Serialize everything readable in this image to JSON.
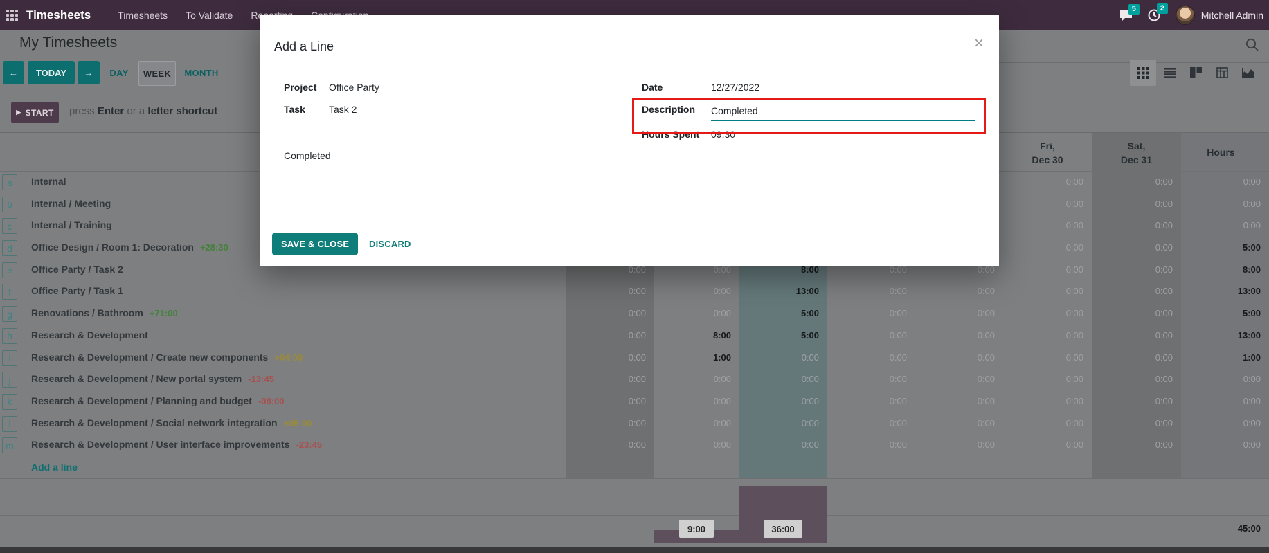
{
  "navbar": {
    "brand": "Timesheets",
    "menu": [
      "Timesheets",
      "To Validate",
      "Reporting",
      "Configuration"
    ],
    "messages_badge": "5",
    "activities_badge": "2",
    "user": "Mitchell Admin"
  },
  "control_panel": {
    "title": "My Timesheets",
    "today_label": "TODAY",
    "scales": [
      "DAY",
      "WEEK",
      "MONTH"
    ],
    "active_scale": "WEEK"
  },
  "timer": {
    "start_label": "START",
    "hint_parts": [
      "press",
      "Enter",
      "or a",
      "letter shortcut"
    ]
  },
  "grid": {
    "day_headers": [
      {
        "line1": "Fri,",
        "line2": "Dec 30"
      },
      {
        "line1": "Sat,",
        "line2": "Dec 31"
      }
    ],
    "hours_header": "Hours",
    "rows": [
      {
        "key": "a",
        "label": "Internal",
        "diff": "",
        "diff_type": "",
        "days": [
          "",
          "",
          "",
          "",
          "",
          "0:00",
          "0:00"
        ],
        "hours": "0:00"
      },
      {
        "key": "b",
        "label": "Internal  /  Meeting",
        "diff": "",
        "diff_type": "",
        "days": [
          "",
          "",
          "",
          "",
          "",
          "0:00",
          "0:00"
        ],
        "hours": "0:00"
      },
      {
        "key": "c",
        "label": "Internal  /  Training",
        "diff": "",
        "diff_type": "",
        "days": [
          "",
          "",
          "",
          "",
          "",
          "0:00",
          "0:00"
        ],
        "hours": "0:00"
      },
      {
        "key": "d",
        "label": "Office Design  /  Room 1: Decoration",
        "diff": "+28:30",
        "diff_type": "success",
        "days": [
          "",
          "",
          "",
          "",
          "",
          "0:00",
          "0:00"
        ],
        "hours": "5:00"
      },
      {
        "key": "e",
        "label": "Office Party  /  Task 2",
        "diff": "",
        "diff_type": "",
        "days": [
          "0:00",
          "0:00",
          "8:00",
          "0:00",
          "0:00",
          "0:00",
          "0:00"
        ],
        "hours": "8:00"
      },
      {
        "key": "f",
        "label": "Office Party  /  Task 1",
        "diff": "",
        "diff_type": "",
        "days": [
          "0:00",
          "0:00",
          "13:00",
          "0:00",
          "0:00",
          "0:00",
          "0:00"
        ],
        "hours": "13:00"
      },
      {
        "key": "g",
        "label": "Renovations  /  Bathroom",
        "diff": "+71:00",
        "diff_type": "success",
        "days": [
          "0:00",
          "0:00",
          "5:00",
          "0:00",
          "0:00",
          "0:00",
          "0:00"
        ],
        "hours": "5:00"
      },
      {
        "key": "h",
        "label": "Research & Development",
        "diff": "",
        "diff_type": "",
        "days": [
          "0:00",
          "8:00",
          "5:00",
          "0:00",
          "0:00",
          "0:00",
          "0:00"
        ],
        "hours": "13:00"
      },
      {
        "key": "i",
        "label": "Research & Development  /  Create new components",
        "diff": "+04:00",
        "diff_type": "warning",
        "days": [
          "0:00",
          "1:00",
          "0:00",
          "0:00",
          "0:00",
          "0:00",
          "0:00"
        ],
        "hours": "1:00"
      },
      {
        "key": "j",
        "label": "Research & Development  /  New portal system",
        "diff": "-13:45",
        "diff_type": "danger",
        "days": [
          "0:00",
          "0:00",
          "0:00",
          "0:00",
          "0:00",
          "0:00",
          "0:00"
        ],
        "hours": "0:00"
      },
      {
        "key": "k",
        "label": "Research & Development  /  Planning and budget",
        "diff": "-08:00",
        "diff_type": "danger",
        "days": [
          "0:00",
          "0:00",
          "0:00",
          "0:00",
          "0:00",
          "0:00",
          "0:00"
        ],
        "hours": "0:00"
      },
      {
        "key": "l",
        "label": "Research & Development  /  Social network integration",
        "diff": "+05:00",
        "diff_type": "warning",
        "days": [
          "0:00",
          "0:00",
          "0:00",
          "0:00",
          "0:00",
          "0:00",
          "0:00"
        ],
        "hours": "0:00"
      },
      {
        "key": "m",
        "label": "Research & Development  /  User interface improvements",
        "diff": "-23:45",
        "diff_type": "danger",
        "days": [
          "0:00",
          "0:00",
          "0:00",
          "0:00",
          "0:00",
          "0:00",
          "0:00"
        ],
        "hours": "0:00"
      }
    ],
    "add_line_label": "Add a line",
    "totals": {
      "monday": "9:00",
      "tuesday": "36:00",
      "grand_total": "45:00"
    }
  },
  "modal": {
    "title": "Add a Line",
    "project_label": "Project",
    "project_value": "Office Party",
    "task_label": "Task",
    "task_value": "Task 2",
    "description_preview": "Completed",
    "date_label": "Date",
    "date_value": "12/27/2022",
    "description_label": "Description",
    "description_value": "Completed",
    "hours_label": "Hours Spent",
    "hours_value": "09:30",
    "save_label": "SAVE & CLOSE",
    "discard_label": "DISCARD"
  },
  "colors": {
    "accent_teal": "#00a09d",
    "navbar_bg": "#3e2c3e",
    "success": "#44813a",
    "warning": "#9a8a3c",
    "danger": "#a85050",
    "bar_purple": "#5e4f5d",
    "annotation_red": "#e31a17",
    "input_underline_teal": "#017e84"
  }
}
